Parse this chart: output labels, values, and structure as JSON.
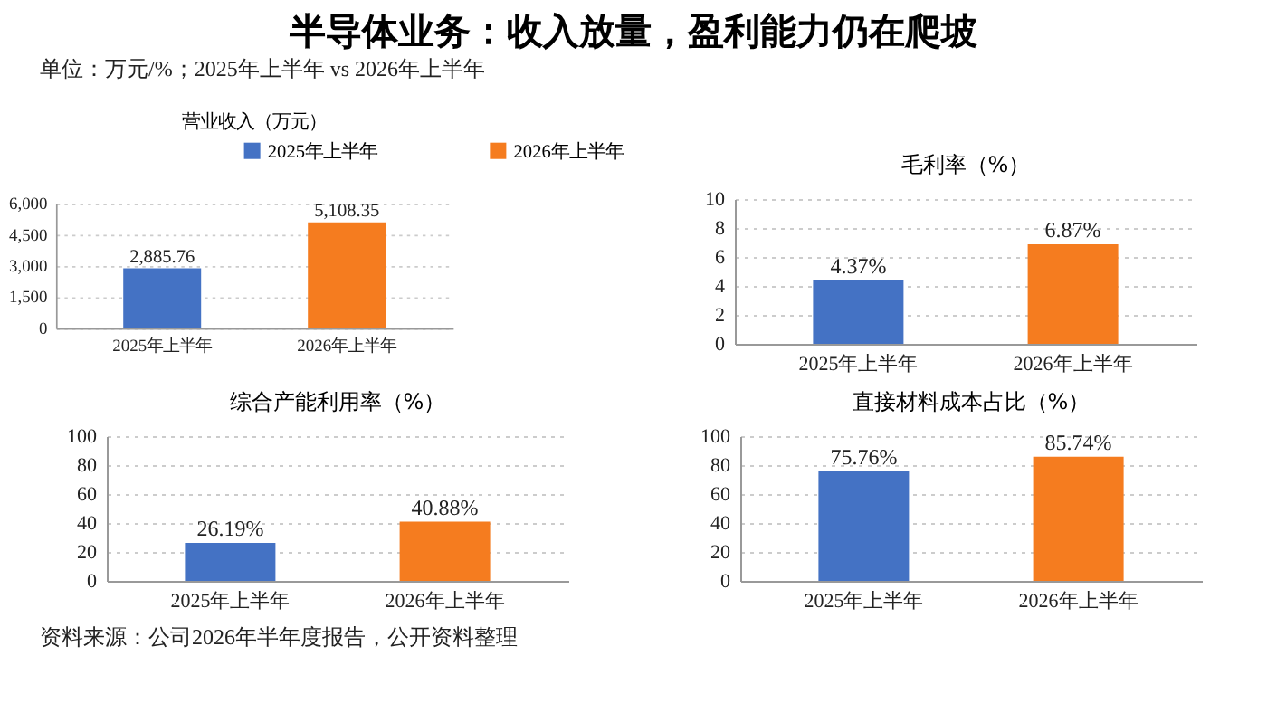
{
  "chart_data": [
    {
      "type": "other",
      "title": "半导体业务：收入放量，盈利能力仍在爬坡",
      "subtitle": "单位：万元/%；2025年上半年 vs 2026年上半年",
      "annotations": [
        "资料来源：公司2026年半年度报告，公开资料整理"
      ]
    },
    {
      "type": "bar",
      "title": "营业收入（万元）",
      "categories": [
        "2025年上半年",
        "2026年上半年"
      ],
      "series": [
        {
          "name": "2025年上半年",
          "color": "#4472c4",
          "values": [
            2885.76,
            null
          ],
          "value_labels": [
            "2,885.76",
            null
          ]
        },
        {
          "name": "2026年上半年",
          "color": "#f57c1f",
          "values": [
            null,
            5108.35
          ],
          "value_labels": [
            null,
            "5,108.35"
          ]
        }
      ],
      "ylim": [
        0,
        6000
      ],
      "yticks": [
        0,
        {
          "value": 1500,
          "label": "1,500"
        },
        {
          "value": 3000,
          "label": "3,000"
        },
        {
          "value": 4500,
          "label": "4,500"
        },
        {
          "value": 6000,
          "label": "6,000"
        }
      ],
      "grid": "y",
      "legend": "top"
    },
    {
      "type": "bar",
      "title": "毛利率（%）",
      "categories": [
        "2025年上半年",
        "2026年上半年"
      ],
      "series": [
        {
          "color": "#4472c4",
          "values": [
            4.37,
            null
          ],
          "value_labels": [
            "4.37%",
            null
          ]
        },
        {
          "color": "#f57c1f",
          "values": [
            null,
            6.87
          ],
          "value_labels": [
            null,
            "6.87%"
          ]
        }
      ],
      "ylim": [
        0,
        10
      ],
      "yticks": [
        0,
        2,
        4,
        6,
        8,
        10
      ],
      "grid": "y"
    },
    {
      "type": "bar",
      "title": "综合产能利用率（%）",
      "categories": [
        "2025年上半年",
        "2026年上半年"
      ],
      "series": [
        {
          "color": "#4472c4",
          "values": [
            26.19,
            null
          ],
          "value_labels": [
            "26.19%",
            null
          ]
        },
        {
          "color": "#f57c1f",
          "values": [
            null,
            40.88
          ],
          "value_labels": [
            null,
            "40.88%"
          ]
        }
      ],
      "ylim": [
        0,
        100
      ],
      "yticks": [
        0,
        20,
        40,
        60,
        80,
        100
      ],
      "grid": "y"
    },
    {
      "type": "bar",
      "title": "直接材料成本占比（%）",
      "categories": [
        "2025年上半年",
        "2026年上半年"
      ],
      "series": [
        {
          "color": "#4472c4",
          "values": [
            75.76,
            null
          ],
          "value_labels": [
            "75.76%",
            null
          ]
        },
        {
          "color": "#f57c1f",
          "values": [
            null,
            85.74
          ],
          "value_labels": [
            null,
            "85.74%"
          ]
        }
      ],
      "ylim": [
        0,
        100
      ],
      "yticks": [
        0,
        20,
        40,
        60,
        80,
        100
      ],
      "grid": "y"
    }
  ]
}
